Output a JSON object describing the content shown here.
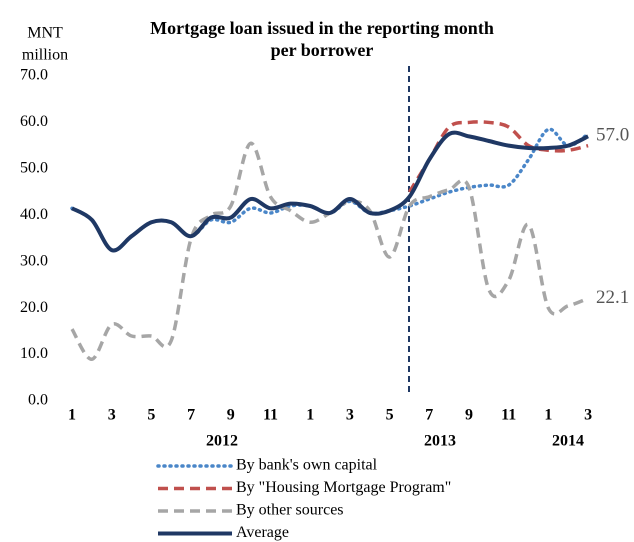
{
  "chart_data": {
    "type": "line",
    "title": [
      "Mortgage loan issued in the reporting month",
      "per borrower"
    ],
    "y_label": [
      "MNT",
      "million"
    ],
    "categories": [
      "1",
      null,
      "3",
      null,
      "5",
      null,
      "7",
      null,
      "9",
      null,
      "11",
      null,
      "1",
      null,
      "3",
      null,
      "5",
      null,
      "7",
      null,
      "9",
      null,
      "11",
      null,
      "1",
      null,
      "3"
    ],
    "year_labels": [
      "2012",
      "2013",
      "2014"
    ],
    "series": [
      {
        "name": "By bank's own capital",
        "color": "#4a86c8",
        "dash": "dotted",
        "values": [
          41.5,
          39,
          32.5,
          35.5,
          38.5,
          38.5,
          35.5,
          39,
          38.5,
          41.5,
          40.5,
          42,
          42,
          40.5,
          43,
          40.5,
          41,
          42,
          43.5,
          45,
          46,
          46.5,
          46.5,
          52,
          58.5,
          55,
          57.5
        ]
      },
      {
        "name": "By \"Housing Mortgage Program\"",
        "color": "#c0504d",
        "dash": "dashed",
        "values": [
          null,
          null,
          null,
          null,
          null,
          null,
          null,
          null,
          null,
          null,
          null,
          null,
          null,
          null,
          null,
          null,
          null,
          45,
          52,
          59,
          60,
          60,
          59,
          55,
          54,
          54,
          55
        ]
      },
      {
        "name": "By other sources",
        "color": "#a6a6a6",
        "dash": "dashed",
        "values": [
          15.5,
          9,
          16.5,
          14,
          14,
          13,
          35,
          40,
          42,
          55.5,
          44,
          41,
          38.5,
          40.5,
          43,
          41,
          31,
          42,
          44,
          45.5,
          46,
          24,
          26,
          38,
          20,
          20.5,
          22.1
        ]
      },
      {
        "name": "Average",
        "color": "#1f3864",
        "dash": "solid",
        "values": [
          41.5,
          39,
          32.5,
          35.5,
          38.5,
          38.5,
          35.5,
          39.5,
          39.5,
          43.5,
          41.5,
          42.5,
          42,
          40.5,
          43.5,
          40.5,
          41,
          44,
          52,
          57.5,
          57,
          56,
          55,
          54.5,
          54.5,
          55,
          57
        ]
      }
    ],
    "annotations": [
      "57.0",
      "22.1"
    ],
    "ylim": [
      0,
      70
    ],
    "yticks": [
      {
        "value": 0,
        "label": "0.0"
      },
      {
        "value": 10,
        "label": "10.0"
      },
      {
        "value": 20,
        "label": "20.0"
      },
      {
        "value": 30,
        "label": "30.0"
      },
      {
        "value": 40,
        "label": "40.0"
      },
      {
        "value": 50,
        "label": "50.0"
      },
      {
        "value": 60,
        "label": "60.0"
      },
      {
        "value": 70,
        "label": "70.0"
      }
    ],
    "grid": false
  }
}
